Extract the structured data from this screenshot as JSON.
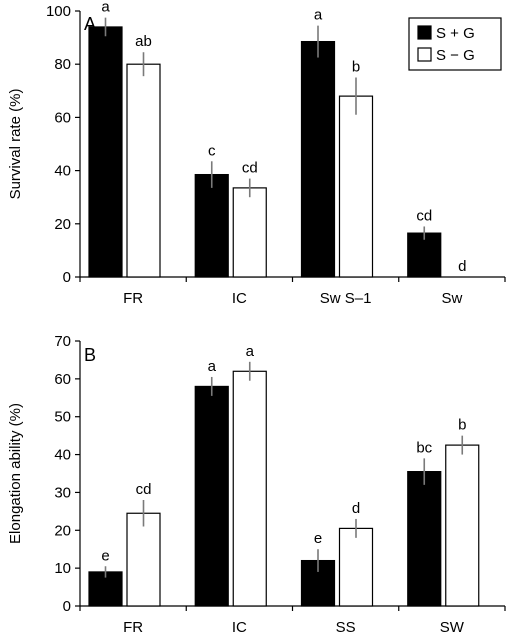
{
  "legend": {
    "entries": [
      {
        "label": "S + G",
        "color": "#000000"
      },
      {
        "label": "S − G",
        "color": "#ffffff"
      }
    ],
    "placement": "top-right of panel A"
  },
  "chart_data": [
    {
      "type": "bar",
      "panel": "A",
      "categories": [
        "FR",
        "IC",
        "Sw S–1",
        "Sw"
      ],
      "ylabel": "Survival rate (%)",
      "xlabel": "",
      "ylim": [
        0,
        100
      ],
      "yticks": [
        0,
        20,
        40,
        60,
        80,
        100
      ],
      "grid": false,
      "series": [
        {
          "name": "S + G",
          "color": "#000000",
          "values": [
            94,
            38.5,
            88.5,
            16.5
          ],
          "errors": [
            3.5,
            5,
            6,
            2.5
          ],
          "letters": [
            "a",
            "c",
            "a",
            "cd"
          ]
        },
        {
          "name": "S − G",
          "color": "#ffffff",
          "values": [
            80,
            33.5,
            68,
            0
          ],
          "errors": [
            4.5,
            3.5,
            7,
            0
          ],
          "letters": [
            "ab",
            "cd",
            "b",
            "d"
          ]
        }
      ]
    },
    {
      "type": "bar",
      "panel": "B",
      "categories": [
        "FR",
        "IC",
        "SS",
        "SW"
      ],
      "ylabel": "Elongation ability (%)",
      "xlabel": "",
      "ylim": [
        0,
        70
      ],
      "yticks": [
        0,
        10,
        20,
        30,
        40,
        50,
        60,
        70
      ],
      "grid": false,
      "series": [
        {
          "name": "S + G",
          "color": "#000000",
          "values": [
            9,
            58,
            12,
            35.5
          ],
          "errors": [
            1.5,
            2.5,
            3,
            3.5
          ],
          "letters": [
            "e",
            "a",
            "e",
            "bc"
          ]
        },
        {
          "name": "S − G",
          "color": "#ffffff",
          "values": [
            24.5,
            62,
            20.5,
            42.5
          ],
          "errors": [
            3.5,
            2.5,
            2.5,
            2.5
          ],
          "letters": [
            "cd",
            "a",
            "d",
            "b"
          ]
        }
      ]
    }
  ]
}
